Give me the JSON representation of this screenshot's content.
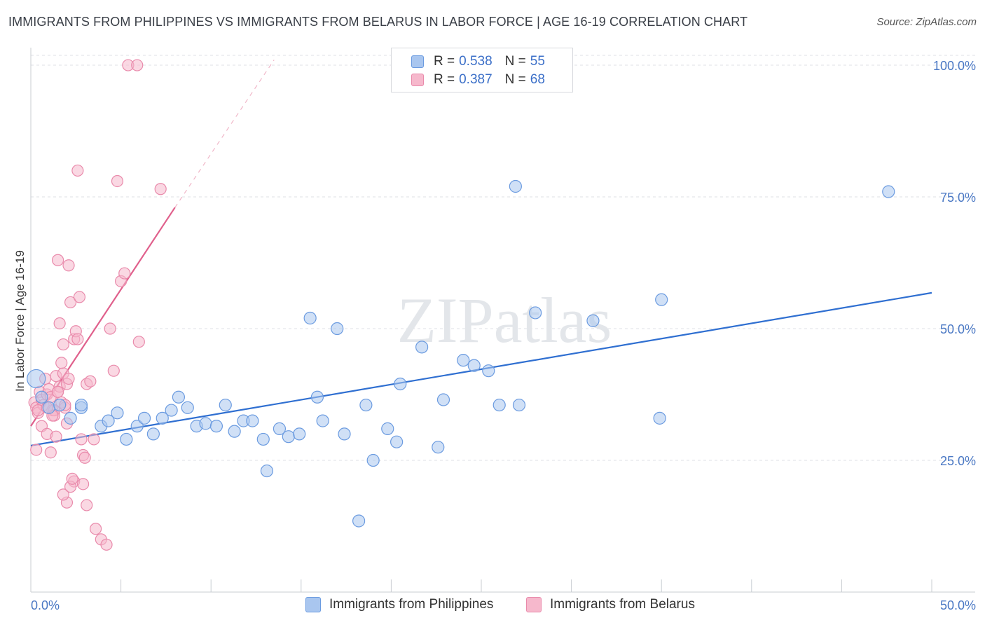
{
  "title": "IMMIGRANTS FROM PHILIPPINES VS IMMIGRANTS FROM BELARUS IN LABOR FORCE | AGE 16-19 CORRELATION CHART",
  "source": "Source: ZipAtlas.com",
  "watermark": "ZIPatlas",
  "colors": {
    "blue_fill": "#a9c6ef",
    "blue_stroke": "#6b9be0",
    "blue_line": "#2f6fd1",
    "pink_fill": "#f6b8cc",
    "pink_stroke": "#e98aab",
    "pink_line": "#e0608c"
  },
  "legend": {
    "rows": [
      {
        "r_label": "R = ",
        "r_value": "0.538",
        "n_label": "N = ",
        "n_value": "55"
      },
      {
        "r_label": "R = ",
        "r_value": "0.387",
        "n_label": "N = ",
        "n_value": "68"
      }
    ]
  },
  "bottom_legend": {
    "series1": "Immigrants from Philippines",
    "series2": "Immigrants from Belarus"
  },
  "chart_data": {
    "type": "scatter",
    "title": "IMMIGRANTS FROM PHILIPPINES VS IMMIGRANTS FROM BELARUS IN LABOR FORCE | AGE 16-19 CORRELATION CHART",
    "xlabel": "",
    "ylabel": "In Labor Force | Age 16-19",
    "xlim": [
      0,
      50
    ],
    "ylim": [
      0,
      102
    ],
    "x_tick_labels": [
      "0.0%",
      "50.0%"
    ],
    "y_ticks": [
      25,
      50,
      75,
      100
    ],
    "y_tick_labels": [
      "25.0%",
      "50.0%",
      "75.0%",
      "100.0%"
    ],
    "grid": true,
    "series": [
      {
        "name": "Immigrants from Philippines",
        "points": [
          [
            0.3,
            40.5
          ],
          [
            0.6,
            37.0
          ],
          [
            1.0,
            35.0
          ],
          [
            1.6,
            35.5
          ],
          [
            2.2,
            33.0
          ],
          [
            2.8,
            35.0
          ],
          [
            3.9,
            31.5
          ],
          [
            4.3,
            32.5
          ],
          [
            4.8,
            34.0
          ],
          [
            5.3,
            29.0
          ],
          [
            5.9,
            31.5
          ],
          [
            6.3,
            33.0
          ],
          [
            6.8,
            30.0
          ],
          [
            7.3,
            33.0
          ],
          [
            7.8,
            34.5
          ],
          [
            8.2,
            37.0
          ],
          [
            8.7,
            35.0
          ],
          [
            9.2,
            31.5
          ],
          [
            9.7,
            32.0
          ],
          [
            10.3,
            31.5
          ],
          [
            10.8,
            35.5
          ],
          [
            11.3,
            30.5
          ],
          [
            11.8,
            32.5
          ],
          [
            12.3,
            32.5
          ],
          [
            12.9,
            29.0
          ],
          [
            13.1,
            23.0
          ],
          [
            13.8,
            31.0
          ],
          [
            14.3,
            29.5
          ],
          [
            14.9,
            30.0
          ],
          [
            15.5,
            52.0
          ],
          [
            15.9,
            37.0
          ],
          [
            16.2,
            32.5
          ],
          [
            17.0,
            50.0
          ],
          [
            17.4,
            30.0
          ],
          [
            18.2,
            13.5
          ],
          [
            18.6,
            35.5
          ],
          [
            19.0,
            25.0
          ],
          [
            19.8,
            31.0
          ],
          [
            20.3,
            28.5
          ],
          [
            20.5,
            39.5
          ],
          [
            21.7,
            46.5
          ],
          [
            22.6,
            27.5
          ],
          [
            22.9,
            36.5
          ],
          [
            24.0,
            44.0
          ],
          [
            24.6,
            43.0
          ],
          [
            25.4,
            42.0
          ],
          [
            26.0,
            35.5
          ],
          [
            26.9,
            77.0
          ],
          [
            27.1,
            35.5
          ],
          [
            28.0,
            53.0
          ],
          [
            31.2,
            51.5
          ],
          [
            34.9,
            33.0
          ],
          [
            35.0,
            55.5
          ],
          [
            47.6,
            76.0
          ],
          [
            2.8,
            35.5
          ]
        ],
        "trend": [
          [
            0,
            27.8
          ],
          [
            50,
            56.8
          ]
        ]
      },
      {
        "name": "Immigrants from Belarus",
        "points": [
          [
            0.2,
            36.0
          ],
          [
            0.3,
            35.0
          ],
          [
            0.4,
            34.0
          ],
          [
            0.5,
            38.0
          ],
          [
            0.6,
            36.5
          ],
          [
            0.7,
            35.5
          ],
          [
            0.8,
            40.5
          ],
          [
            0.9,
            37.5
          ],
          [
            1.0,
            38.5
          ],
          [
            1.1,
            37.0
          ],
          [
            1.2,
            34.5
          ],
          [
            1.3,
            33.5
          ],
          [
            1.4,
            41.0
          ],
          [
            1.5,
            38.0
          ],
          [
            1.6,
            39.0
          ],
          [
            1.7,
            36.0
          ],
          [
            1.8,
            41.5
          ],
          [
            1.9,
            35.0
          ],
          [
            2.0,
            39.5
          ],
          [
            2.1,
            40.5
          ],
          [
            0.3,
            27.0
          ],
          [
            0.6,
            31.5
          ],
          [
            0.9,
            30.0
          ],
          [
            1.1,
            26.5
          ],
          [
            1.3,
            34.5
          ],
          [
            1.4,
            29.5
          ],
          [
            1.5,
            63.0
          ],
          [
            1.6,
            51.0
          ],
          [
            1.7,
            43.5
          ],
          [
            1.8,
            47.0
          ],
          [
            1.9,
            35.5
          ],
          [
            2.1,
            62.0
          ],
          [
            2.2,
            55.0
          ],
          [
            2.4,
            48.0
          ],
          [
            2.5,
            49.5
          ],
          [
            2.6,
            48.0
          ],
          [
            2.7,
            56.0
          ],
          [
            2.8,
            29.0
          ],
          [
            2.9,
            26.0
          ],
          [
            3.0,
            25.5
          ],
          [
            3.1,
            39.5
          ],
          [
            3.3,
            40.0
          ],
          [
            3.5,
            29.0
          ],
          [
            3.6,
            12.0
          ],
          [
            3.9,
            10.0
          ],
          [
            4.2,
            9.0
          ],
          [
            4.4,
            50.0
          ],
          [
            4.6,
            42.0
          ],
          [
            4.8,
            78.0
          ],
          [
            5.0,
            59.0
          ],
          [
            5.2,
            60.5
          ],
          [
            5.4,
            100.0
          ],
          [
            5.9,
            100.0
          ],
          [
            6.0,
            47.5
          ],
          [
            7.2,
            76.5
          ],
          [
            2.6,
            80.0
          ],
          [
            2.0,
            17.0
          ],
          [
            2.4,
            21.0
          ],
          [
            2.9,
            20.5
          ],
          [
            3.1,
            16.5
          ],
          [
            1.8,
            18.5
          ],
          [
            2.2,
            20.0
          ],
          [
            2.0,
            32.0
          ],
          [
            1.2,
            33.5
          ],
          [
            0.4,
            34.5
          ],
          [
            0.9,
            35.0
          ],
          [
            2.3,
            21.5
          ],
          [
            1.5,
            38.0
          ]
        ],
        "trend": [
          [
            0,
            31.5
          ],
          [
            8.0,
            73.0
          ]
        ],
        "trend_dashed": [
          [
            8.0,
            73.0
          ],
          [
            13.5,
            101.0
          ]
        ]
      }
    ]
  }
}
